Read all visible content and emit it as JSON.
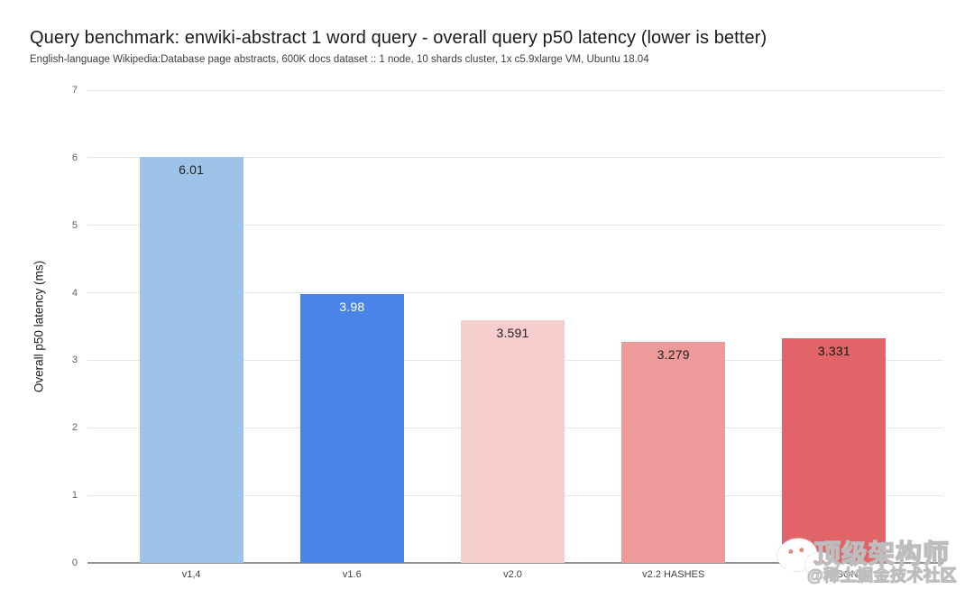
{
  "chart_data": {
    "type": "bar",
    "title": "Query benchmark: enwiki-abstract 1 word query - overall query p50 latency (lower is better)",
    "subtitle": "English-language Wikipedia:Database page abstracts, 600K docs dataset :: 1 node, 10 shards cluster, 1x c5.9xlarge VM, Ubuntu 18.04",
    "xlabel": "",
    "ylabel": "Overall p50 latency (ms)",
    "ylim": [
      0,
      7
    ],
    "yticks": [
      0,
      1,
      2,
      3,
      4,
      5,
      6,
      7
    ],
    "grid": true,
    "legend_position": "none",
    "categories": [
      "v1,4",
      "v1.6",
      "v2.0",
      "v2.2 HASHES",
      "v2.2 JSON"
    ],
    "values": [
      6.01,
      3.98,
      3.591,
      3.279,
      3.331
    ],
    "value_labels": [
      "6.01",
      "3.98",
      "3.591",
      "3.279",
      "3.331"
    ],
    "bar_colors": [
      "#9dc3e8",
      "#4a84e8",
      "#f5cdcd",
      "#ec9a9a",
      "#e06468"
    ],
    "value_label_colors": [
      "#212121",
      "#ffffff",
      "#212121",
      "#212121",
      "#161616"
    ],
    "gridline_color": "#e6e6e6",
    "baseline_color": "#8f8f8f"
  },
  "watermark": {
    "line1": "顶级架构师",
    "line2": "@稀土掘金技术社区",
    "icon": "wechat-chat-bubbles-icon"
  }
}
